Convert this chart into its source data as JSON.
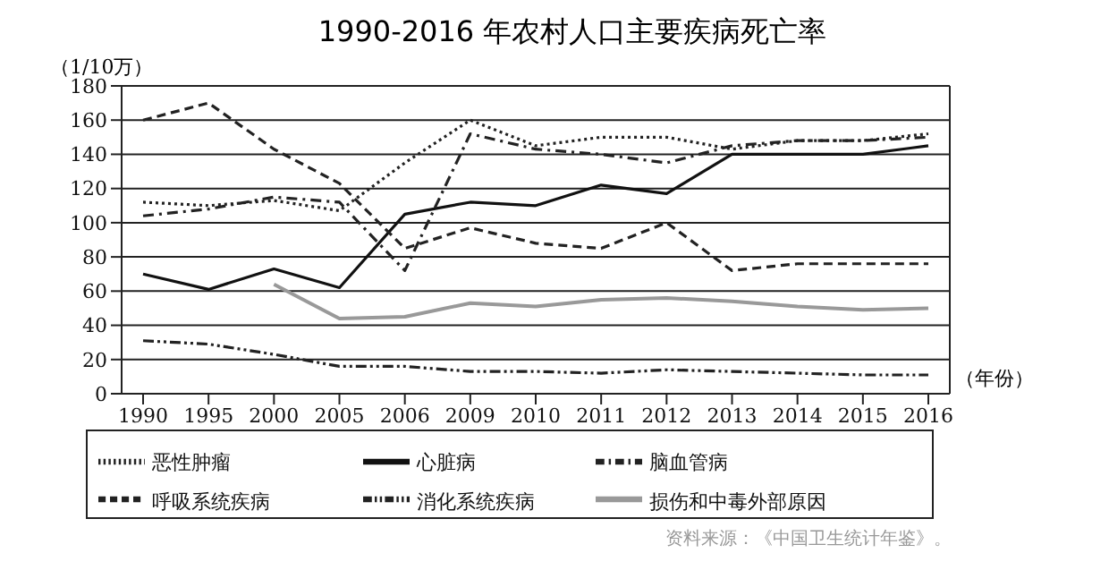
{
  "chart_data": {
    "type": "line",
    "title": "1990-2016 年农村人口主要疾病死亡率",
    "ylabel": "（1/10万）",
    "xlabel": "（年份）",
    "categories": [
      "1990",
      "1995",
      "2000",
      "2005",
      "2006",
      "2009",
      "2010",
      "2011",
      "2012",
      "2013",
      "2014",
      "2015",
      "2016"
    ],
    "ylim": [
      0,
      180
    ],
    "yticks": [
      0,
      20,
      40,
      60,
      80,
      100,
      120,
      140,
      160,
      180
    ],
    "grid": "y",
    "legend": "bottom",
    "marker": "none",
    "series": [
      {
        "name": "恶性肿瘤",
        "color": "#222222",
        "line_style": "dotted",
        "values": [
          112,
          110,
          113,
          107,
          135,
          160,
          145,
          150,
          150,
          143,
          148,
          148,
          152
        ]
      },
      {
        "name": "心脏病",
        "color": "#111111",
        "line_style": "solid",
        "values": [
          70,
          61,
          73,
          62,
          105,
          112,
          110,
          122,
          117,
          140,
          140,
          140,
          145
        ]
      },
      {
        "name": "脑血管病",
        "color": "#222222",
        "line_style": "dashdot",
        "values": [
          104,
          108,
          115,
          112,
          72,
          152,
          143,
          140,
          135,
          145,
          148,
          148,
          150
        ]
      },
      {
        "name": "呼吸系统疾病",
        "color": "#222222",
        "line_style": "dashed",
        "values": [
          160,
          170,
          143,
          123,
          85,
          97,
          88,
          85,
          100,
          72,
          76,
          76,
          76
        ]
      },
      {
        "name": "消化系统疾病",
        "color": "#222222",
        "line_style": "dashdotdot",
        "values": [
          31,
          29,
          23,
          16,
          16,
          13,
          13,
          12,
          14,
          13,
          12,
          11,
          11
        ]
      },
      {
        "name": "损伤和中毒外部原因",
        "color": "#999999",
        "line_style": "solid",
        "values": [
          null,
          null,
          64,
          44,
          45,
          53,
          51,
          55,
          56,
          54,
          51,
          49,
          50
        ]
      }
    ],
    "annotations": [
      "资料来源：《中国卫生统计年鉴》。"
    ]
  }
}
